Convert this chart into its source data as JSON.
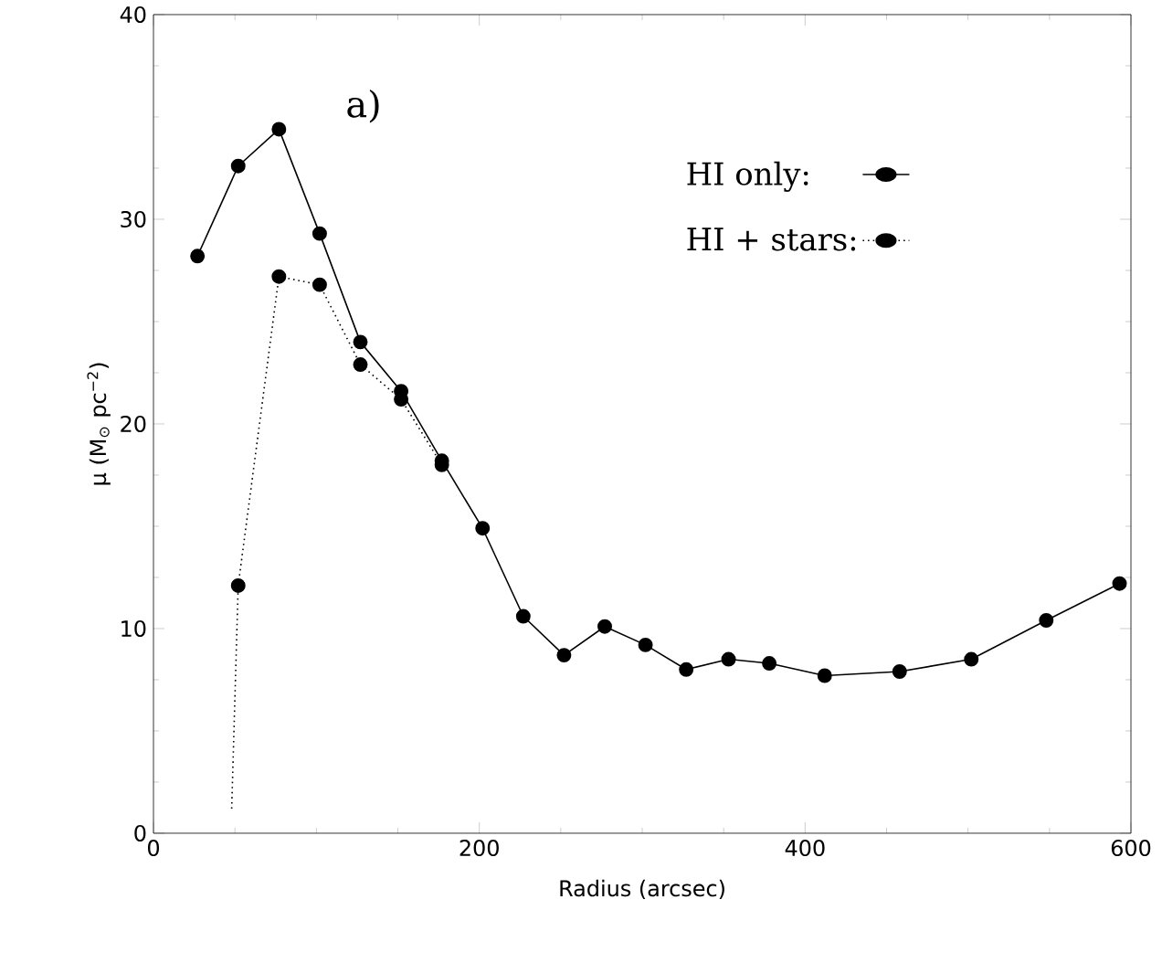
{
  "chart_data": {
    "type": "line",
    "xlabel": "Radius (arcsec)",
    "ylabel": "μ (M$_{⊙}$ pc$^{−2}$)",
    "annotations": [
      "a)"
    ],
    "xlim": [
      0,
      600
    ],
    "ylim": [
      0,
      40
    ],
    "xticks": [
      0,
      200,
      400,
      600
    ],
    "yticks": [
      0,
      10,
      20,
      30,
      40
    ],
    "grid": false,
    "legend": "top right",
    "marker": "circle",
    "series": [
      {
        "name": "HI only:",
        "color": "#000000",
        "line_style": "solid",
        "x": [
          27,
          52,
          77,
          102,
          127,
          152,
          177,
          202,
          227,
          252,
          277,
          302,
          327,
          353,
          378,
          412,
          458,
          502,
          548,
          593
        ],
        "values": [
          28.2,
          32.6,
          34.4,
          29.3,
          24.0,
          21.6,
          18.2,
          14.9,
          10.6,
          8.7,
          10.1,
          9.2,
          8.0,
          8.5,
          8.3,
          7.7,
          7.9,
          8.5,
          10.4,
          12.2
        ]
      },
      {
        "name": "HI + stars:",
        "color": "#000000",
        "line_style": "dotted",
        "x": [
          52,
          77,
          102,
          127,
          152,
          177
        ],
        "values": [
          12.1,
          27.2,
          26.8,
          22.9,
          21.2,
          18.0
        ]
      },
      {
        "color": "#000000",
        "line_style": "dotted",
        "marker": "none",
        "x": [
          48,
          52
        ],
        "values": [
          1.2,
          12.1
        ]
      }
    ]
  }
}
